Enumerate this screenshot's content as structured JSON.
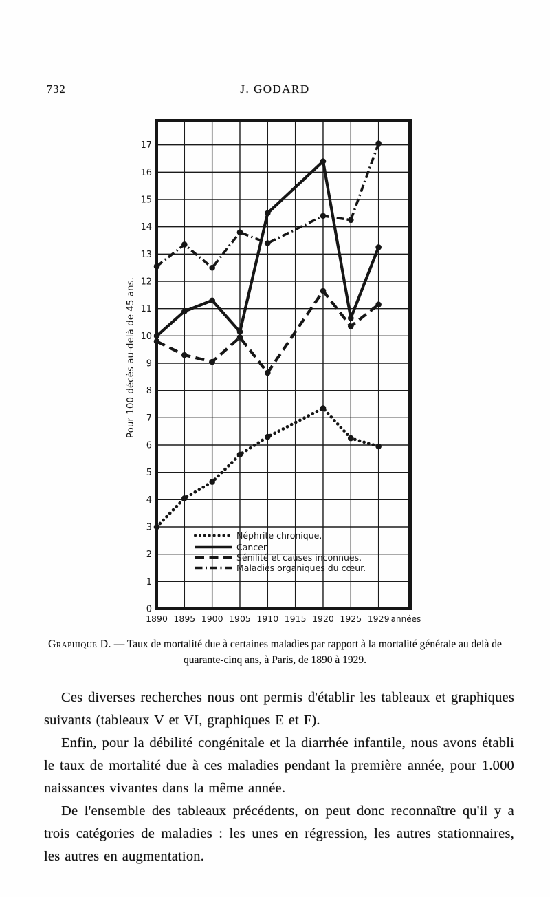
{
  "page": {
    "number": "732",
    "running_head": "J. GODARD"
  },
  "chart_data": {
    "type": "line",
    "x": [
      1890,
      1895,
      1900,
      1905,
      1910,
      1920,
      1925,
      1929
    ],
    "x_tick_labels": [
      "1890",
      "1895",
      "1900",
      "1905",
      "1910",
      "1915",
      "1920",
      "1925",
      "1929"
    ],
    "x_axis_suffix": "années",
    "ylabel": "Pour 100 décès au-delà de 45 ans.",
    "ylim": [
      0,
      17.9
    ],
    "y_tick_min": 0,
    "y_tick_max": 17,
    "y_tick_step": 1,
    "grid": true,
    "legend_position": "inside-bottom-center",
    "ink_color": "#161616",
    "series": [
      {
        "name": "Néphrite chronique.",
        "line_style": "dotted",
        "values": [
          3.0,
          4.05,
          4.65,
          5.65,
          6.3,
          7.35,
          6.25,
          5.95
        ]
      },
      {
        "name": "Cancer.",
        "line_style": "solid",
        "values": [
          10.0,
          10.9,
          11.3,
          10.15,
          14.5,
          16.4,
          10.65,
          13.25
        ]
      },
      {
        "name": "Sénilité et causes inconnues.",
        "line_style": "dashed",
        "values": [
          9.8,
          9.3,
          9.05,
          9.95,
          8.65,
          11.65,
          10.35,
          11.15
        ]
      },
      {
        "name": "Maladies organiques du cœur.",
        "line_style": "dashdot",
        "values": [
          12.55,
          13.35,
          12.5,
          13.8,
          13.4,
          14.4,
          14.25,
          17.05
        ]
      }
    ]
  },
  "figure": {
    "caption_label": "Graphique D.",
    "caption_text": " — Taux de mortalité due à certaines maladies par rapport à la mortalité générale au delà de quarante-cinq ans, à Paris, de 1890 à 1929."
  },
  "body": {
    "paragraphs": [
      "Ces diverses recherches nous ont permis d'établir les tableaux et graphiques suivants (tableaux V et VI, graphiques E et F).",
      "Enfin, pour la débilité congénitale et la diarrhée infantile, nous avons établi le taux de mortalité due à ces maladies pendant la première année, pour 1.000 naissances vivantes dans la même année.",
      "De l'ensemble des tableaux précédents, on peut donc reconnaître qu'il y a trois catégories de maladies : les unes en régression, les autres stationnaires, les autres en augmentation."
    ]
  }
}
